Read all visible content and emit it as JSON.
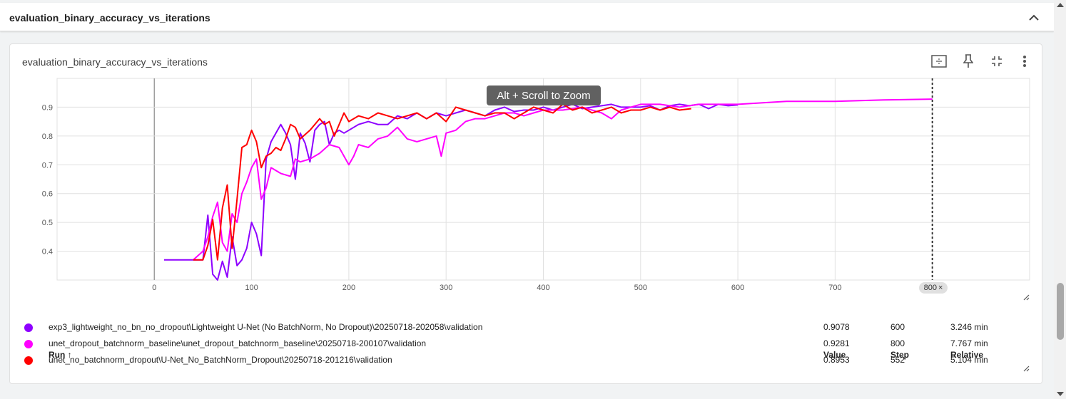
{
  "section": {
    "title": "evaluation_binary_accuracy_vs_iterations"
  },
  "card": {
    "title": "evaluation_binary_accuracy_vs_iterations",
    "toolbar_icons": [
      "fit-domain-icon",
      "pin-icon",
      "collapse-icon",
      "more-vert-icon"
    ]
  },
  "tooltip": "Alt + Scroll to Zoom",
  "step_badge": {
    "label": "800",
    "close": "×"
  },
  "x_axis_ticks": [
    "0",
    "100",
    "200",
    "300",
    "400",
    "500",
    "600",
    "700"
  ],
  "y_axis_ticks": [
    "0.4",
    "0.5",
    "0.6",
    "0.7",
    "0.8",
    "0.9"
  ],
  "table": {
    "headers": {
      "run": "Run ↑",
      "value": "Value",
      "step": "Step",
      "relative": "Relative"
    },
    "rows": [
      {
        "color": "#8e00ff",
        "run": "exp3_lightweight_no_bn_no_dropout\\Lightweight U-Net (No BatchNorm, No Dropout)\\20250718-202058\\validation",
        "value": "0.9078",
        "step": "600",
        "relative": "3.246 min"
      },
      {
        "color": "#ff00ff",
        "run": "unet_dropout_batchnorm_baseline\\unet_dropout_batchnorm_baseline\\20250718-200107\\validation",
        "value": "0.9281",
        "step": "800",
        "relative": "7.767 min"
      },
      {
        "color": "#ff0000",
        "run": "unet_no_batchnorm_dropout\\U-Net_No_BatchNorm_Dropout\\20250718-201216\\validation",
        "value": "0.8953",
        "step": "552",
        "relative": "5.104 min"
      }
    ]
  },
  "chart_data": {
    "type": "line",
    "xlim": [
      -100,
      900
    ],
    "ylim": [
      0.3,
      1.0
    ],
    "grid": true,
    "cursor_step": 800,
    "series": [
      {
        "name": "exp3_lightweight_no_bn_no_dropout\\Lightweight U-Net (No BatchNorm, No Dropout)\\20250718-202058\\validation",
        "color": "#8e00ff",
        "x": [
          10,
          20,
          30,
          40,
          50,
          55,
          60,
          65,
          70,
          75,
          80,
          85,
          90,
          95,
          100,
          105,
          110,
          115,
          120,
          125,
          130,
          135,
          140,
          145,
          150,
          155,
          160,
          165,
          170,
          175,
          180,
          185,
          190,
          195,
          200,
          210,
          220,
          230,
          240,
          250,
          260,
          270,
          280,
          290,
          300,
          310,
          320,
          330,
          340,
          350,
          360,
          370,
          380,
          390,
          400,
          410,
          420,
          430,
          440,
          450,
          460,
          470,
          480,
          490,
          500,
          510,
          520,
          530,
          540,
          550,
          560,
          570,
          580,
          590,
          600
        ],
        "y": [
          0.37,
          0.37,
          0.37,
          0.37,
          0.37,
          0.525,
          0.32,
          0.29,
          0.365,
          0.31,
          0.45,
          0.35,
          0.37,
          0.41,
          0.5,
          0.46,
          0.385,
          0.72,
          0.78,
          0.81,
          0.84,
          0.81,
          0.77,
          0.65,
          0.81,
          0.775,
          0.71,
          0.82,
          0.84,
          0.85,
          0.77,
          0.81,
          0.82,
          0.81,
          0.82,
          0.84,
          0.85,
          0.84,
          0.84,
          0.87,
          0.86,
          0.88,
          0.86,
          0.88,
          0.87,
          0.88,
          0.89,
          0.88,
          0.87,
          0.89,
          0.9,
          0.885,
          0.89,
          0.89,
          0.9,
          0.89,
          0.9,
          0.91,
          0.895,
          0.9,
          0.905,
          0.91,
          0.9,
          0.9,
          0.9,
          0.905,
          0.89,
          0.905,
          0.91,
          0.905,
          0.91,
          0.895,
          0.91,
          0.905,
          0.908
        ]
      },
      {
        "name": "unet_dropout_batchnorm_baseline\\unet_dropout_batchnorm_baseline\\20250718-200107\\validation",
        "color": "#ff00ff",
        "x": [
          40,
          50,
          55,
          60,
          65,
          70,
          75,
          80,
          85,
          90,
          95,
          100,
          105,
          110,
          115,
          120,
          130,
          140,
          145,
          150,
          160,
          170,
          180,
          190,
          200,
          205,
          210,
          220,
          230,
          240,
          250,
          260,
          270,
          280,
          290,
          295,
          300,
          310,
          320,
          330,
          340,
          350,
          360,
          370,
          380,
          390,
          400,
          420,
          440,
          460,
          470,
          480,
          490,
          500,
          520,
          540,
          560,
          580,
          600,
          650,
          700,
          750,
          800
        ],
        "y": [
          0.37,
          0.4,
          0.45,
          0.52,
          0.57,
          0.43,
          0.4,
          0.53,
          0.5,
          0.6,
          0.64,
          0.69,
          0.72,
          0.58,
          0.62,
          0.69,
          0.67,
          0.66,
          0.72,
          0.71,
          0.72,
          0.74,
          0.77,
          0.76,
          0.7,
          0.73,
          0.77,
          0.76,
          0.79,
          0.8,
          0.83,
          0.79,
          0.78,
          0.79,
          0.8,
          0.73,
          0.81,
          0.82,
          0.85,
          0.86,
          0.86,
          0.87,
          0.88,
          0.88,
          0.87,
          0.88,
          0.89,
          0.89,
          0.9,
          0.88,
          0.86,
          0.89,
          0.9,
          0.91,
          0.91,
          0.9,
          0.91,
          0.91,
          0.91,
          0.92,
          0.92,
          0.925,
          0.928
        ]
      },
      {
        "name": "unet_no_batchnorm_dropout\\U-Net_No_BatchNorm_Dropout\\20250718-201216\\validation",
        "color": "#ff0000",
        "x": [
          40,
          45,
          50,
          55,
          60,
          65,
          70,
          75,
          80,
          85,
          90,
          95,
          100,
          105,
          110,
          115,
          120,
          125,
          130,
          135,
          140,
          145,
          150,
          160,
          170,
          175,
          180,
          185,
          190,
          195,
          200,
          210,
          220,
          230,
          240,
          250,
          260,
          270,
          280,
          290,
          300,
          310,
          320,
          330,
          340,
          350,
          360,
          370,
          380,
          390,
          400,
          410,
          420,
          430,
          440,
          450,
          460,
          470,
          480,
          490,
          500,
          510,
          520,
          530,
          540,
          552
        ],
        "y": [
          0.37,
          0.37,
          0.37,
          0.42,
          0.51,
          0.37,
          0.55,
          0.63,
          0.41,
          0.58,
          0.76,
          0.77,
          0.82,
          0.78,
          0.69,
          0.73,
          0.74,
          0.76,
          0.75,
          0.79,
          0.84,
          0.83,
          0.79,
          0.82,
          0.86,
          0.84,
          0.85,
          0.8,
          0.84,
          0.88,
          0.85,
          0.87,
          0.86,
          0.88,
          0.87,
          0.86,
          0.87,
          0.88,
          0.86,
          0.88,
          0.85,
          0.9,
          0.89,
          0.88,
          0.87,
          0.88,
          0.88,
          0.86,
          0.88,
          0.9,
          0.89,
          0.88,
          0.91,
          0.89,
          0.9,
          0.88,
          0.89,
          0.9,
          0.88,
          0.89,
          0.89,
          0.9,
          0.89,
          0.9,
          0.89,
          0.895
        ]
      }
    ]
  }
}
